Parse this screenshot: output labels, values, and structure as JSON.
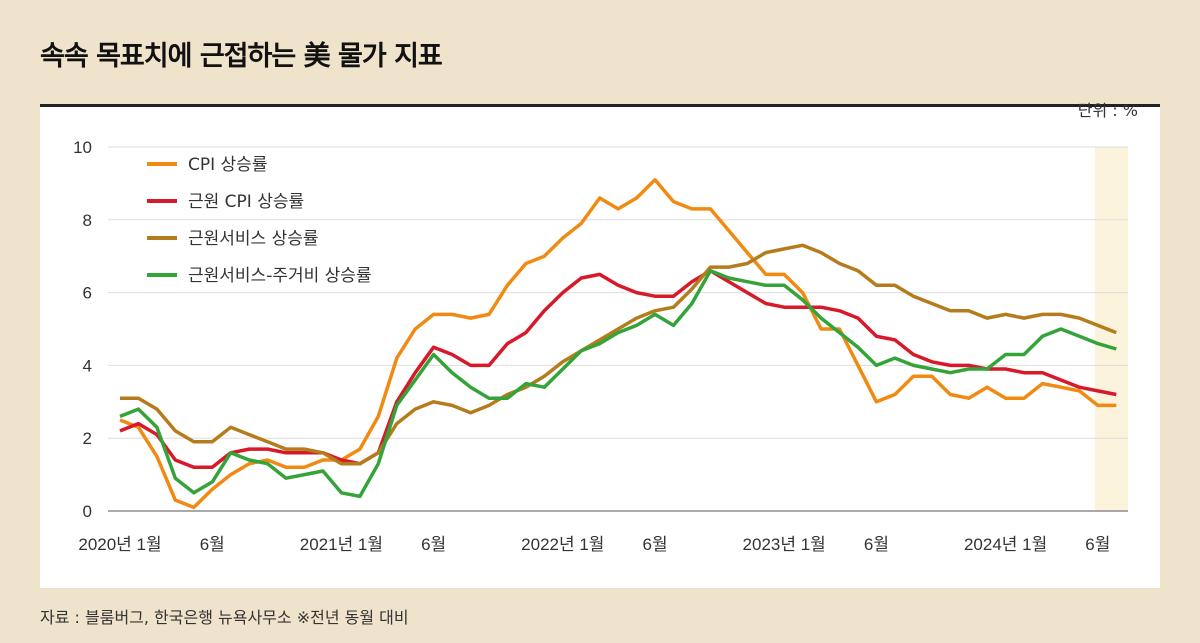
{
  "title": "속속 목표치에 근접하는 美 물가 지표",
  "unit": "단위 : %",
  "source": "자료 : 블룸버그, 한국은행 뉴욕사무소 ※전년 동월 대비",
  "chart_data": {
    "type": "line",
    "x_start": "2020-01",
    "x_end": "2024-07",
    "frequency": "monthly",
    "xtick_labels": [
      {
        "month": "2020-01",
        "label": "2020년 1월"
      },
      {
        "month": "2020-06",
        "label": "6월"
      },
      {
        "month": "2021-01",
        "label": "2021년 1월"
      },
      {
        "month": "2021-06",
        "label": "6월"
      },
      {
        "month": "2022-01",
        "label": "2022년 1월"
      },
      {
        "month": "2022-06",
        "label": "6월"
      },
      {
        "month": "2023-01",
        "label": "2023년 1월"
      },
      {
        "month": "2023-06",
        "label": "6월"
      },
      {
        "month": "2024-01",
        "label": "2024년 1월"
      },
      {
        "month": "2024-06",
        "label": "6월"
      }
    ],
    "ylim": [
      0,
      10
    ],
    "yticks": [
      0,
      2,
      4,
      6,
      8,
      10
    ],
    "grid": true,
    "legend_position": "top-left",
    "highlight_period": [
      "2024-06",
      "2024-07"
    ],
    "highlight_color": "#fbf3dc",
    "series": [
      {
        "name": "CPI 상승률",
        "color": "#f08a12",
        "values": [
          2.5,
          2.3,
          1.5,
          0.3,
          0.1,
          0.6,
          1.0,
          1.3,
          1.4,
          1.2,
          1.2,
          1.4,
          1.4,
          1.7,
          2.6,
          4.2,
          5.0,
          5.4,
          5.4,
          5.3,
          5.4,
          6.2,
          6.8,
          7.0,
          7.5,
          7.9,
          8.6,
          8.3,
          8.6,
          9.1,
          8.5,
          8.3,
          8.3,
          7.7,
          7.1,
          6.5,
          6.5,
          6.0,
          5.0,
          5.0,
          4.0,
          3.0,
          3.2,
          3.7,
          3.7,
          3.2,
          3.1,
          3.4,
          3.1,
          3.1,
          3.5,
          3.4,
          3.3,
          2.9,
          2.9
        ]
      },
      {
        "name": "근원 CPI 상승률",
        "color": "#d7192a",
        "values": [
          2.2,
          2.4,
          2.1,
          1.4,
          1.2,
          1.2,
          1.6,
          1.7,
          1.7,
          1.6,
          1.6,
          1.6,
          1.4,
          1.3,
          1.6,
          3.0,
          3.8,
          4.5,
          4.3,
          4.0,
          4.0,
          4.6,
          4.9,
          5.5,
          6.0,
          6.4,
          6.5,
          6.2,
          6.0,
          5.9,
          5.9,
          6.3,
          6.6,
          6.3,
          6.0,
          5.7,
          5.6,
          5.6,
          5.6,
          5.5,
          5.3,
          4.8,
          4.7,
          4.3,
          4.1,
          4.0,
          4.0,
          3.9,
          3.9,
          3.8,
          3.8,
          3.6,
          3.4,
          3.3,
          3.2
        ]
      },
      {
        "name": "근원서비스 상승률",
        "color": "#b57c1d",
        "values": [
          3.1,
          3.1,
          2.8,
          2.2,
          1.9,
          1.9,
          2.3,
          2.1,
          1.9,
          1.7,
          1.7,
          1.6,
          1.3,
          1.3,
          1.6,
          2.4,
          2.8,
          3.0,
          2.9,
          2.7,
          2.9,
          3.2,
          3.4,
          3.7,
          4.1,
          4.4,
          4.7,
          5.0,
          5.3,
          5.5,
          5.6,
          6.1,
          6.7,
          6.7,
          6.8,
          7.1,
          7.2,
          7.3,
          7.1,
          6.8,
          6.6,
          6.2,
          6.2,
          5.9,
          5.7,
          5.5,
          5.5,
          5.3,
          5.4,
          5.3,
          5.4,
          5.4,
          5.3,
          5.1,
          4.9
        ]
      },
      {
        "name": "근원서비스-주거비 상승률",
        "color": "#34a43a",
        "values": [
          2.6,
          2.8,
          2.3,
          0.9,
          0.5,
          0.8,
          1.6,
          1.4,
          1.3,
          0.9,
          1.0,
          1.1,
          0.5,
          0.4,
          1.3,
          2.9,
          3.6,
          4.3,
          3.8,
          3.4,
          3.1,
          3.1,
          3.5,
          3.4,
          3.9,
          4.4,
          4.6,
          4.9,
          5.1,
          5.4,
          5.1,
          5.7,
          6.6,
          6.4,
          6.3,
          6.2,
          6.2,
          5.8,
          5.3,
          4.9,
          4.5,
          4.0,
          4.2,
          4.0,
          3.9,
          3.8,
          3.9,
          3.9,
          4.3,
          4.3,
          4.8,
          5.0,
          4.8,
          4.6,
          4.45
        ]
      }
    ]
  }
}
